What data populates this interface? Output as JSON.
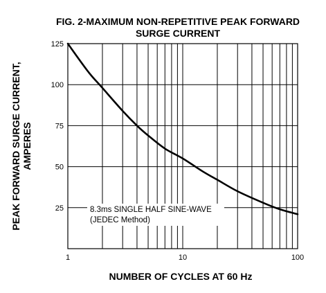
{
  "chart_data": {
    "type": "line",
    "title_line1": "FIG. 2-MAXIMUM NON-REPETITIVE PEAK FORWARD",
    "title_line2": "SURGE CURRENT",
    "xlabel": "NUMBER OF CYCLES AT 60 Hz",
    "ylabel_line1": "PEAK  FORWARD SURGE CURRENT,",
    "ylabel_line2": "AMPERES",
    "x_scale": "log",
    "xlim": [
      1,
      100
    ],
    "ylim": [
      0,
      125
    ],
    "x_ticks": [
      {
        "value": 1,
        "label": "1"
      },
      {
        "value": 10,
        "label": "10"
      },
      {
        "value": 100,
        "label": "100"
      }
    ],
    "y_ticks": [
      {
        "value": 25,
        "label": "25"
      },
      {
        "value": 50,
        "label": "50"
      },
      {
        "value": 75,
        "label": "75"
      },
      {
        "value": 100,
        "label": "100"
      },
      {
        "value": 125,
        "label": "125"
      }
    ],
    "grid": true,
    "annotation_line1": "8.3ms SINGLE HALF SINE-WAVE",
    "annotation_line2": "(JEDEC Method)",
    "series": [
      {
        "color": "#000000",
        "x": [
          1,
          1.5,
          2,
          3,
          4,
          5,
          7,
          10,
          15,
          20,
          30,
          50,
          70,
          100
        ],
        "y": [
          125,
          108,
          98,
          84,
          75,
          69,
          61,
          55,
          47,
          42,
          35,
          28,
          24,
          21
        ]
      }
    ]
  }
}
